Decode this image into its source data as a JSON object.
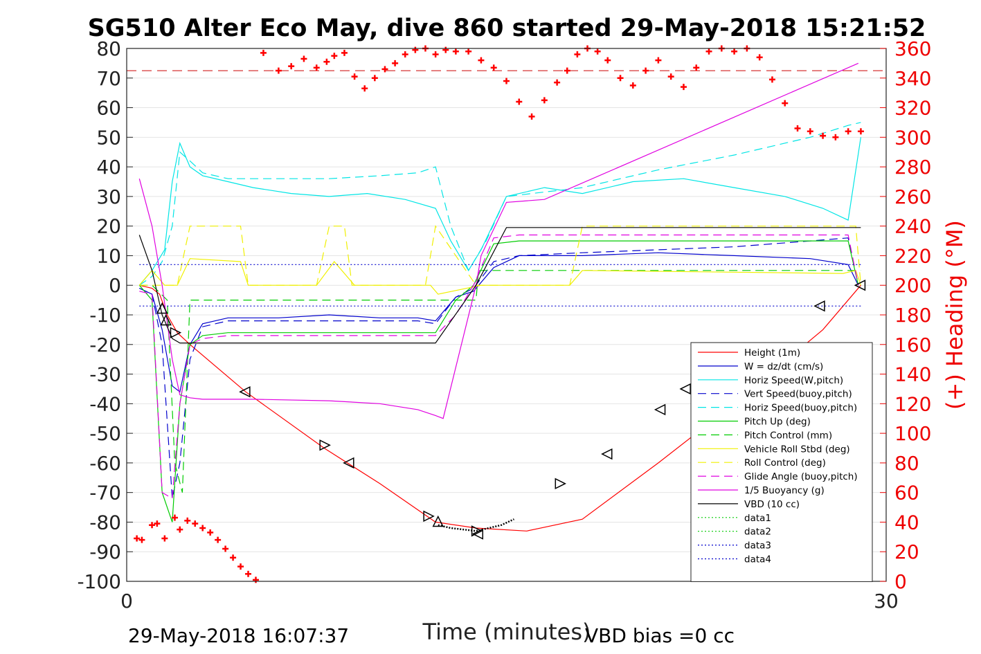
{
  "chart_data": {
    "type": "line",
    "title": "SG510 Alter Eco May, dive 860 started 29-May-2018 15:21:52",
    "xlabel": "Time (minutes)",
    "ylabel": "",
    "y2label": "(+) Heading (°M)",
    "footer_left": "29-May-2018 16:07:37",
    "footer_right": "VBD bias =0 cc",
    "xlim": [
      0,
      30
    ],
    "ylim": [
      -100,
      80
    ],
    "y2lim": [
      0,
      360
    ],
    "x_ticks": [
      "0",
      "30"
    ],
    "y_ticks": [
      80,
      70,
      60,
      50,
      40,
      30,
      20,
      10,
      0,
      -10,
      -20,
      -30,
      -40,
      -50,
      -60,
      -70,
      -80,
      -90,
      -100
    ],
    "y2_ticks": [
      360,
      340,
      320,
      300,
      280,
      260,
      240,
      220,
      200,
      180,
      160,
      140,
      120,
      100,
      80,
      60,
      40,
      20,
      0
    ],
    "grid": "horizontal",
    "legend_position": "right",
    "colors": {
      "red": "#ff0000",
      "blue": "#0000cc",
      "cyan": "#00e5e5",
      "green": "#00cc00",
      "yellow": "#f0f000",
      "magenta": "#e000e0",
      "black": "#000000"
    },
    "series": [
      {
        "name": "Height (1m)",
        "color": "#ff0000",
        "dash": "solid",
        "x": [
          0.5,
          1.0,
          1.3,
          1.6,
          2.0,
          2.5,
          4.7,
          7.8,
          10.0,
          12.2,
          13.8,
          15.8,
          18.0,
          21.0,
          24.0,
          27.5,
          29.0
        ],
        "y": [
          0,
          -1,
          -3,
          -10,
          -16,
          -20,
          -36,
          -55,
          -67,
          -80,
          -82,
          -83,
          -79,
          -60,
          -40,
          -15,
          0
        ]
      },
      {
        "name": "W = dz/dt (cm/s)",
        "color": "#0000cc",
        "dash": "solid",
        "x": [
          0.5,
          1.0,
          1.4,
          1.8,
          2.1,
          2.5,
          3.0,
          4.0,
          6.0,
          8.0,
          10.0,
          11.5,
          12.2,
          13.0,
          13.7,
          14.5,
          15.5,
          18.0,
          21.0,
          24.0,
          27.0,
          28.5,
          28.9
        ],
        "y": [
          -1,
          -3,
          -15,
          -34,
          -36,
          -20,
          -13,
          -11,
          -11,
          -10,
          -11,
          -11,
          -12,
          -4,
          -2,
          6,
          10,
          10,
          11,
          10,
          9,
          7,
          0
        ]
      },
      {
        "name": "Horiz Speed(W,pitch)",
        "color": "#00e5e5",
        "dash": "solid",
        "x": [
          0.5,
          1.0,
          1.5,
          1.8,
          2.1,
          2.5,
          3.0,
          4.0,
          5.0,
          6.5,
          8.0,
          9.5,
          11.0,
          12.2,
          12.8,
          13.5,
          14.0,
          15.0,
          16.5,
          18.0,
          20.0,
          22.0,
          24.0,
          26.0,
          27.5,
          28.5,
          29.0
        ],
        "y": [
          0,
          5,
          12,
          35,
          48,
          40,
          37,
          35,
          33,
          31,
          30,
          31,
          29,
          26,
          15,
          5,
          12,
          30,
          33,
          31,
          35,
          36,
          33,
          30,
          26,
          22,
          50
        ]
      },
      {
        "name": "Vert Speed(buoy,pitch)",
        "color": "#0000cc",
        "dash": "dash",
        "x": [
          0.5,
          1.0,
          1.4,
          1.8,
          2.1,
          2.5,
          3.0,
          4.0,
          6.0,
          8.0,
          10.0,
          11.5,
          12.2,
          13.0,
          13.7,
          14.5,
          15.5,
          18.0,
          21.0,
          24.0,
          27.0,
          28.5,
          28.9
        ],
        "y": [
          -1,
          -3,
          -20,
          -72,
          -60,
          -25,
          -14,
          -12,
          -12,
          -12,
          -12,
          -12,
          -13,
          -4,
          -1,
          8,
          10,
          11,
          12,
          13,
          15,
          16,
          0
        ]
      },
      {
        "name": "Horiz Speed(buoy,pitch)",
        "color": "#00e5e5",
        "dash": "dash",
        "x": [
          0.5,
          1.0,
          1.4,
          1.8,
          2.1,
          2.5,
          3.0,
          4.0,
          6.0,
          8.0,
          10.0,
          11.5,
          12.2,
          12.8,
          13.5,
          14.2,
          15.0,
          18.0,
          21.0,
          24.0,
          27.0,
          28.5,
          29.0
        ],
        "y": [
          0,
          3,
          8,
          20,
          45,
          42,
          38,
          36,
          36,
          36,
          37,
          38,
          40,
          20,
          5,
          15,
          30,
          33,
          39,
          44,
          50,
          54,
          55
        ]
      },
      {
        "name": "Pitch Up (deg)",
        "color": "#00cc00",
        "dash": "solid",
        "x": [
          0.5,
          1.0,
          1.4,
          1.8,
          2.1,
          2.5,
          3.0,
          4.0,
          6.0,
          8.0,
          10.0,
          11.5,
          12.2,
          13.0,
          13.7,
          14.5,
          15.5,
          18.0,
          21.0,
          24.0,
          27.0,
          28.5,
          28.9
        ],
        "y": [
          0,
          -5,
          -70,
          -80,
          -40,
          -20,
          -17,
          -16,
          -16,
          -16,
          -16,
          -16,
          -16,
          -5,
          0,
          14,
          15,
          15,
          15,
          15,
          15,
          15,
          0
        ]
      },
      {
        "name": "Pitch Control (mm)",
        "color": "#00cc00",
        "dash": "dash",
        "x": [
          0.5,
          1.0,
          1.6,
          1.9,
          2.2,
          2.5,
          12.2,
          12.3,
          13.8,
          13.9,
          14.5,
          29.0
        ],
        "y": [
          0,
          0,
          -5,
          -60,
          -70,
          -5,
          -5,
          -5,
          -5,
          5,
          5,
          5
        ]
      },
      {
        "name": "Vehicle Roll Stbd (deg)",
        "color": "#f0f000",
        "dash": "solid",
        "x": [
          0.5,
          1.0,
          1.5,
          2.0,
          2.5,
          4.5,
          4.8,
          5.5,
          7.5,
          8.2,
          9.0,
          12.0,
          12.3,
          14.0,
          14.5,
          17.5,
          18.0,
          28.3,
          28.8,
          29.0
        ],
        "y": [
          0,
          5,
          0,
          0,
          9,
          8,
          0,
          0,
          0,
          8,
          0,
          0,
          -3,
          0,
          0,
          0,
          5,
          4,
          5,
          0
        ]
      },
      {
        "name": "Roll Control (deg)",
        "color": "#f0f000",
        "dash": "dash",
        "x": [
          0.5,
          1.0,
          1.5,
          2.0,
          2.5,
          4.5,
          4.8,
          7.5,
          8.0,
          8.6,
          8.9,
          11.8,
          12.2,
          13.8,
          14.0,
          14.5,
          17.5,
          18.0,
          21.0,
          28.3,
          28.8,
          29.0
        ],
        "y": [
          0,
          0,
          0,
          0,
          20,
          20,
          0,
          0,
          20,
          20,
          0,
          0,
          20,
          0,
          0,
          0,
          0,
          20,
          20,
          20,
          20,
          0
        ]
      },
      {
        "name": "Glide Angle (buoy,pitch)",
        "color": "#e000e0",
        "dash": "dash",
        "x": [
          0.5,
          1.0,
          1.4,
          1.8,
          2.1,
          2.5,
          3.0,
          4.0,
          6.0,
          8.0,
          10.0,
          11.5,
          12.2,
          13.0,
          13.7,
          14.5,
          15.5,
          18.0,
          21.0,
          24.0,
          27.0,
          28.5,
          28.9
        ],
        "y": [
          -2,
          -3,
          -70,
          -72,
          -40,
          -20,
          -18,
          -17,
          -17,
          -17,
          -17,
          -17,
          -17,
          -10,
          0,
          16,
          17,
          17,
          17,
          17,
          17,
          17,
          0
        ]
      },
      {
        "name": "1/5 Buoyancy (g)",
        "color": "#e000e0",
        "dash": "solid",
        "x": [
          0.5,
          1.0,
          1.4,
          1.8,
          2.1,
          2.5,
          3.0,
          5.0,
          8.0,
          10.0,
          11.5,
          12.2,
          12.5,
          13.8,
          14.0,
          15.0,
          16.5,
          28.9
        ],
        "y": [
          36,
          20,
          0,
          -25,
          -37,
          -38,
          -38.5,
          -38.5,
          -39,
          -40,
          -42,
          -44,
          -45,
          0,
          10,
          28,
          29,
          75
        ]
      },
      {
        "name": "VBD (10 cc)",
        "color": "#000000",
        "dash": "solid",
        "x": [
          0.5,
          1.0,
          1.4,
          1.8,
          2.1,
          2.5,
          3.0,
          12.2,
          13.8,
          15.0,
          29.0
        ],
        "y": [
          17,
          5,
          -10,
          -18,
          -19.5,
          -19.5,
          -19.5,
          -19.5,
          0,
          19.5,
          19.5
        ]
      },
      {
        "name": "data1",
        "color": "#00cc00",
        "dash": "dot",
        "x": [],
        "y": []
      },
      {
        "name": "data2",
        "color": "#00cc00",
        "dash": "dot",
        "x": [],
        "y": []
      },
      {
        "name": "data3",
        "color": "#0000cc",
        "dash": "dot",
        "x": [
          0.5,
          29.0
        ],
        "y": [
          7,
          7
        ]
      },
      {
        "name": "data4",
        "color": "#0000cc",
        "dash": "dot",
        "x": [
          0.5,
          29.0
        ],
        "y": [
          -7,
          -7
        ]
      }
    ],
    "heading": {
      "color": "#ff0000",
      "marker": "+",
      "mean": 345,
      "x": [
        0.4,
        0.6,
        1.0,
        1.2,
        1.5,
        1.9,
        2.1,
        2.4,
        2.7,
        3.0,
        3.3,
        3.6,
        3.9,
        4.2,
        4.5,
        4.8,
        5.1,
        5.4,
        6.0,
        6.5,
        7.0,
        7.5,
        7.9,
        8.2,
        8.6,
        9.0,
        9.4,
        9.8,
        10.2,
        10.6,
        11.0,
        11.4,
        11.8,
        12.2,
        12.6,
        13.0,
        13.5,
        14.0,
        14.5,
        15.0,
        15.5,
        16.0,
        16.5,
        17.0,
        17.4,
        17.8,
        18.2,
        18.6,
        19.0,
        19.5,
        20.0,
        20.5,
        21.0,
        21.5,
        22.0,
        22.5,
        23.0,
        23.5,
        24.0,
        24.5,
        25.0,
        25.5,
        26.0,
        26.5,
        27.0,
        27.5,
        28.0,
        28.5,
        29.0
      ],
      "y": [
        29,
        28,
        38,
        39,
        29,
        43,
        35,
        41,
        39,
        36,
        33,
        28,
        22,
        16,
        10,
        5,
        1,
        357,
        345,
        348,
        353,
        347,
        351,
        355,
        357,
        341,
        333,
        340,
        346,
        350,
        356,
        359,
        360,
        356,
        359,
        358,
        358,
        352,
        347,
        338,
        324,
        314,
        325,
        337,
        345,
        356,
        360,
        358,
        352,
        340,
        335,
        345,
        352,
        341,
        334,
        347,
        358,
        360,
        358,
        360,
        354,
        339,
        323,
        306,
        304,
        301,
        300,
        304,
        304
      ]
    },
    "triangle_markers": {
      "color": "#000000",
      "points": [
        {
          "x": 1.4,
          "y": -8,
          "dir": "up"
        },
        {
          "x": 1.55,
          "y": -12,
          "dir": "up"
        },
        {
          "x": 1.9,
          "y": -16,
          "dir": "right"
        },
        {
          "x": 4.7,
          "y": -36,
          "dir": "left"
        },
        {
          "x": 7.8,
          "y": -54,
          "dir": "right"
        },
        {
          "x": 8.8,
          "y": -60,
          "dir": "left"
        },
        {
          "x": 11.9,
          "y": -78,
          "dir": "right"
        },
        {
          "x": 12.3,
          "y": -80,
          "dir": "up"
        },
        {
          "x": 13.8,
          "y": -83,
          "dir": "right"
        },
        {
          "x": 13.9,
          "y": -84,
          "dir": "left"
        },
        {
          "x": 17.1,
          "y": -67,
          "dir": "right"
        },
        {
          "x": 19.0,
          "y": -57,
          "dir": "left"
        },
        {
          "x": 21.1,
          "y": -42,
          "dir": "left"
        },
        {
          "x": 22.1,
          "y": -35,
          "dir": "left"
        },
        {
          "x": 27.4,
          "y": -7,
          "dir": "left"
        },
        {
          "x": 29.0,
          "y": 0,
          "dir": "left"
        }
      ]
    },
    "dotted_bottom": {
      "color": "#000000",
      "x": [
        12.3,
        12.8,
        13.3,
        13.8,
        14.3,
        14.8,
        15.3
      ],
      "y": [
        -81,
        -82,
        -82.5,
        -83,
        -82,
        -81,
        -79
      ]
    }
  }
}
